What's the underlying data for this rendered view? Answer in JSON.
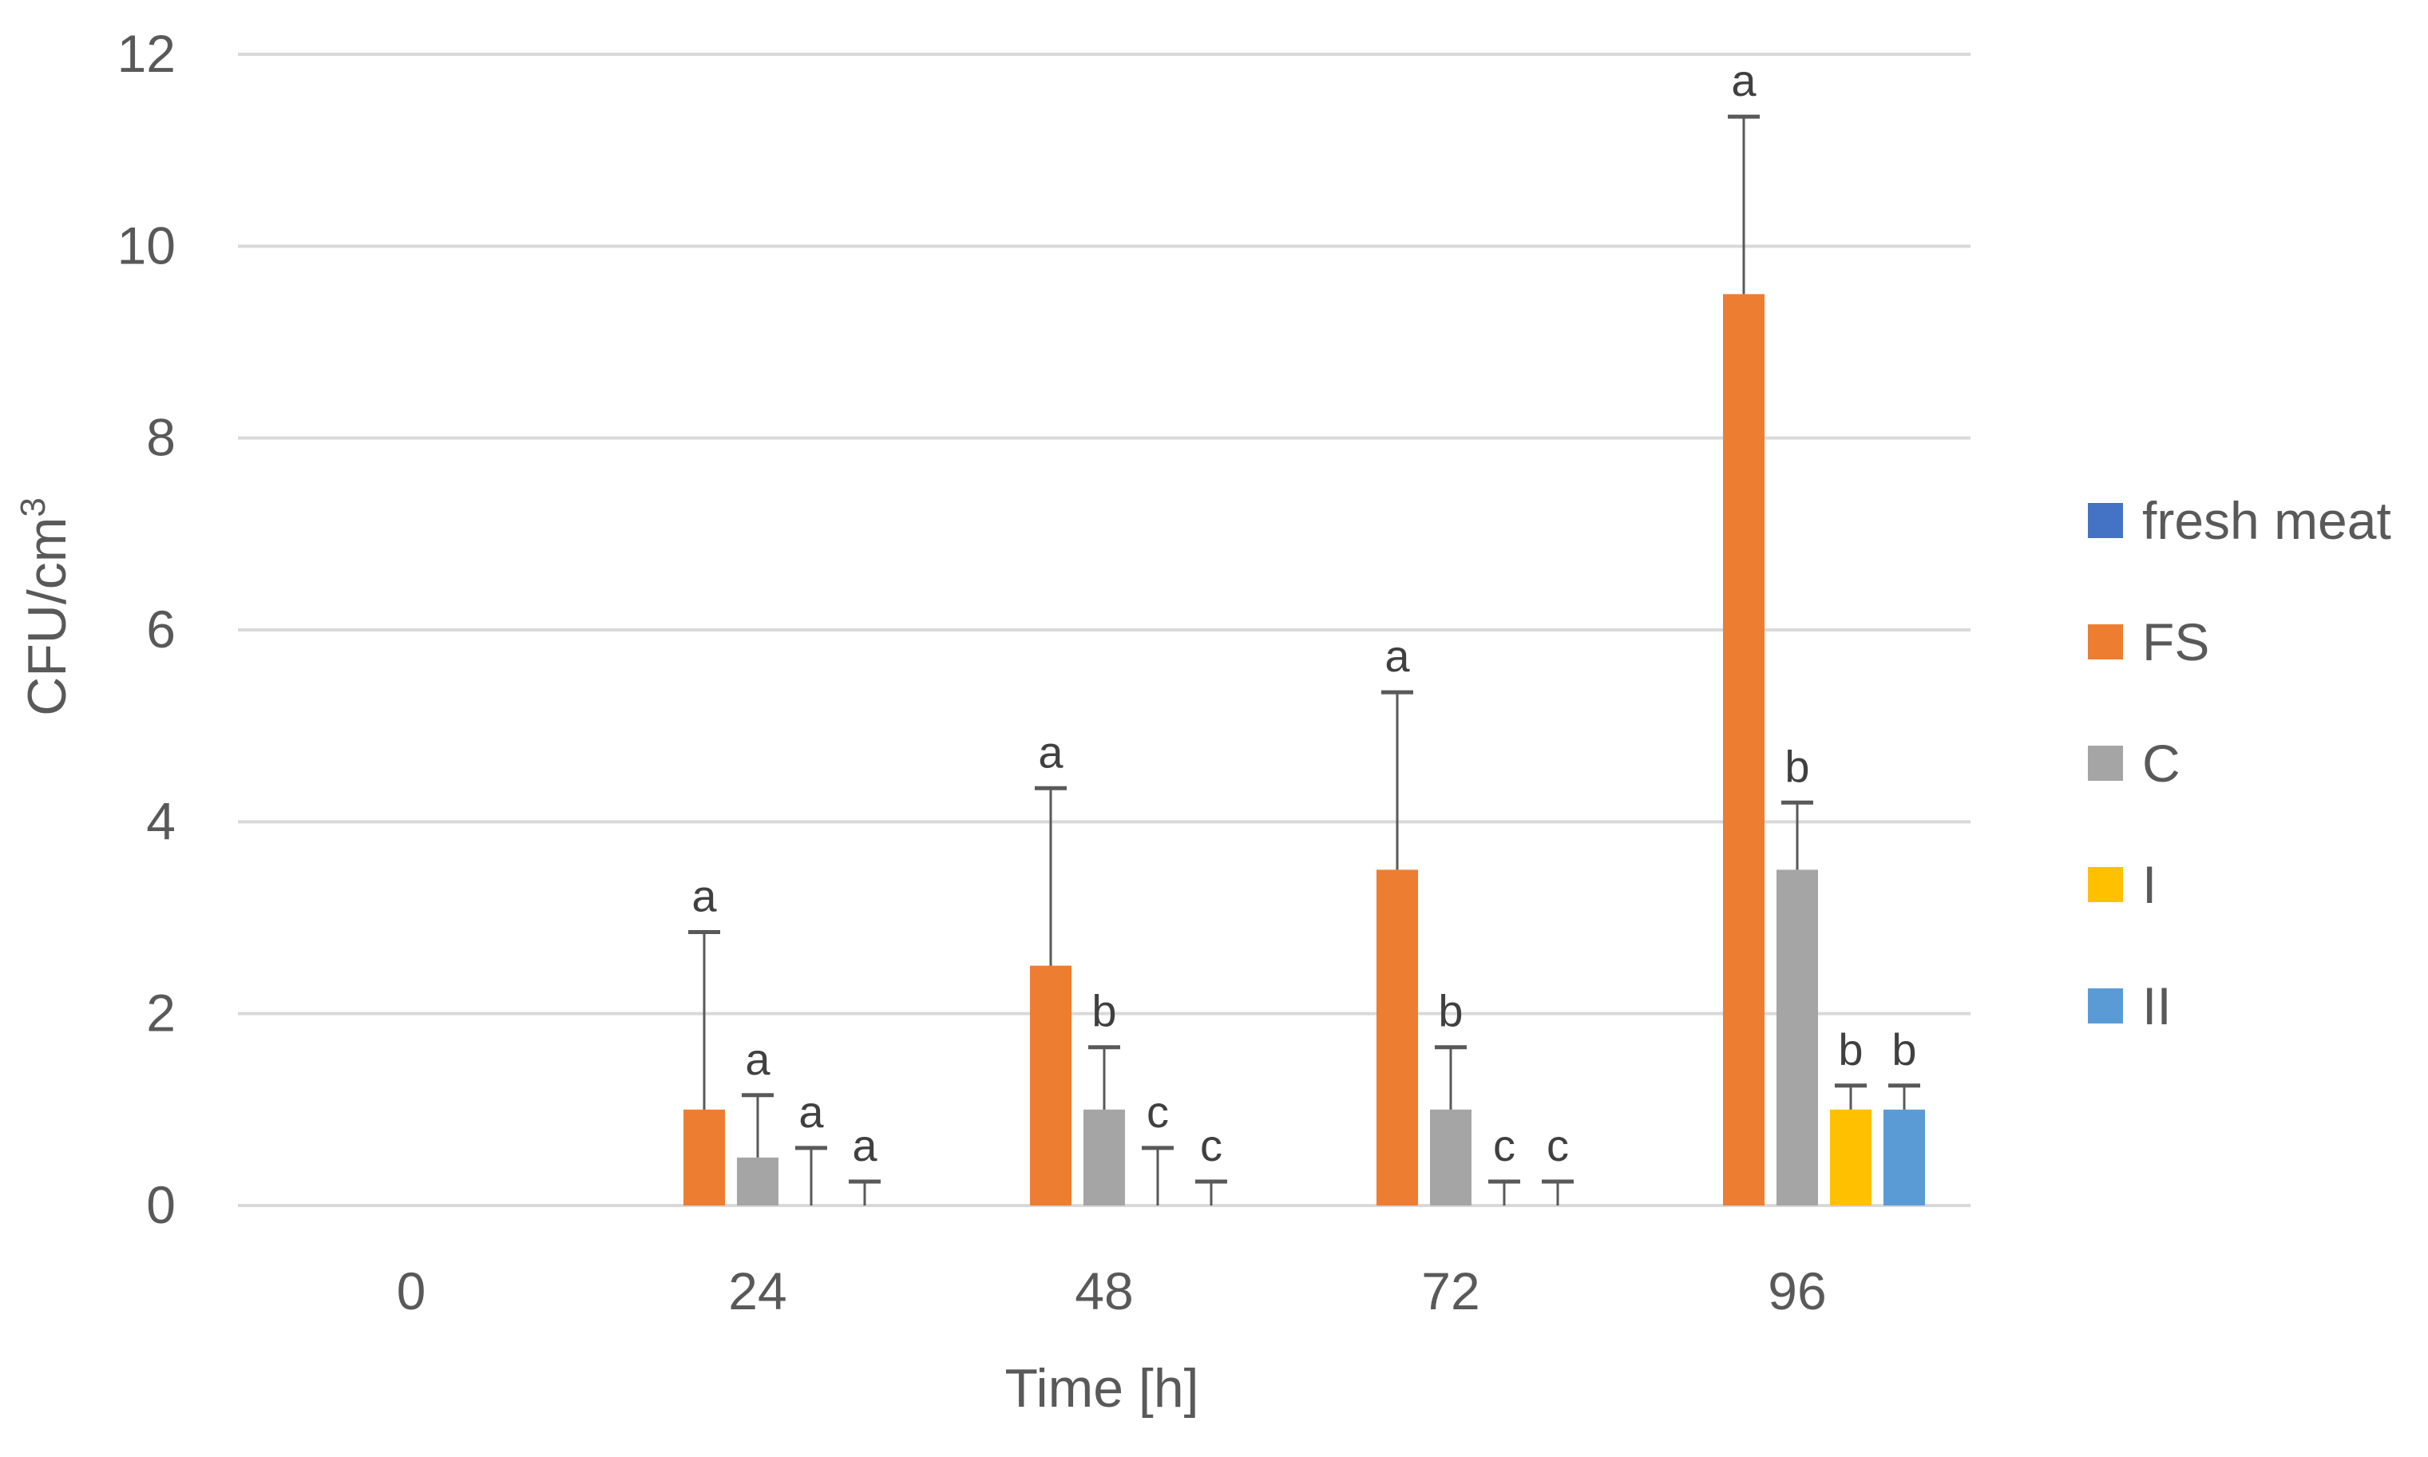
{
  "chart_data": {
    "type": "bar",
    "title": "",
    "xlabel": "Time [h]",
    "ylabel": "CFU/cm",
    "ylabel_superscript": "3",
    "categories": [
      "0",
      "24",
      "48",
      "72",
      "96"
    ],
    "y_ticks": [
      "0",
      "2",
      "4",
      "6",
      "8",
      "10",
      "12"
    ],
    "ylim": [
      0,
      12
    ],
    "grid": true,
    "legend_position": "right",
    "series": [
      {
        "name": "fresh meat",
        "color": "#4472C4",
        "values": [
          0,
          0,
          0,
          0,
          0
        ],
        "error_upper": [
          null,
          null,
          null,
          null,
          null
        ],
        "significance": [
          "",
          "",
          "",
          "",
          ""
        ]
      },
      {
        "name": "FS",
        "color": "#ED7D31",
        "values": [
          0,
          1.0,
          2.5,
          3.5,
          9.5
        ],
        "error_upper": [
          null,
          2.85,
          4.35,
          5.35,
          11.35
        ],
        "significance": [
          "",
          "a",
          "a",
          "a",
          "a"
        ]
      },
      {
        "name": "C",
        "color": "#A5A5A5",
        "values": [
          0,
          0.5,
          1.0,
          1.0,
          3.5
        ],
        "error_upper": [
          null,
          1.15,
          1.65,
          1.65,
          4.2
        ],
        "significance": [
          "",
          "a",
          "b",
          "b",
          "b"
        ]
      },
      {
        "name": "I",
        "color": "#FFC000",
        "values": [
          0,
          0,
          0,
          0,
          1.0
        ],
        "error_upper": [
          null,
          0.6,
          0.6,
          0.25,
          1.25
        ],
        "significance": [
          "",
          "a",
          "c",
          "c",
          "b"
        ]
      },
      {
        "name": "II",
        "color": "#5B9BD5",
        "values": [
          0,
          0,
          0,
          0,
          1.0
        ],
        "error_upper": [
          null,
          0.25,
          0.25,
          0.25,
          1.25
        ],
        "significance": [
          "",
          "a",
          "c",
          "c",
          "b"
        ]
      }
    ]
  },
  "styles": {
    "grid_color": "#D9D9D9",
    "error_bar_color": "#595959"
  }
}
